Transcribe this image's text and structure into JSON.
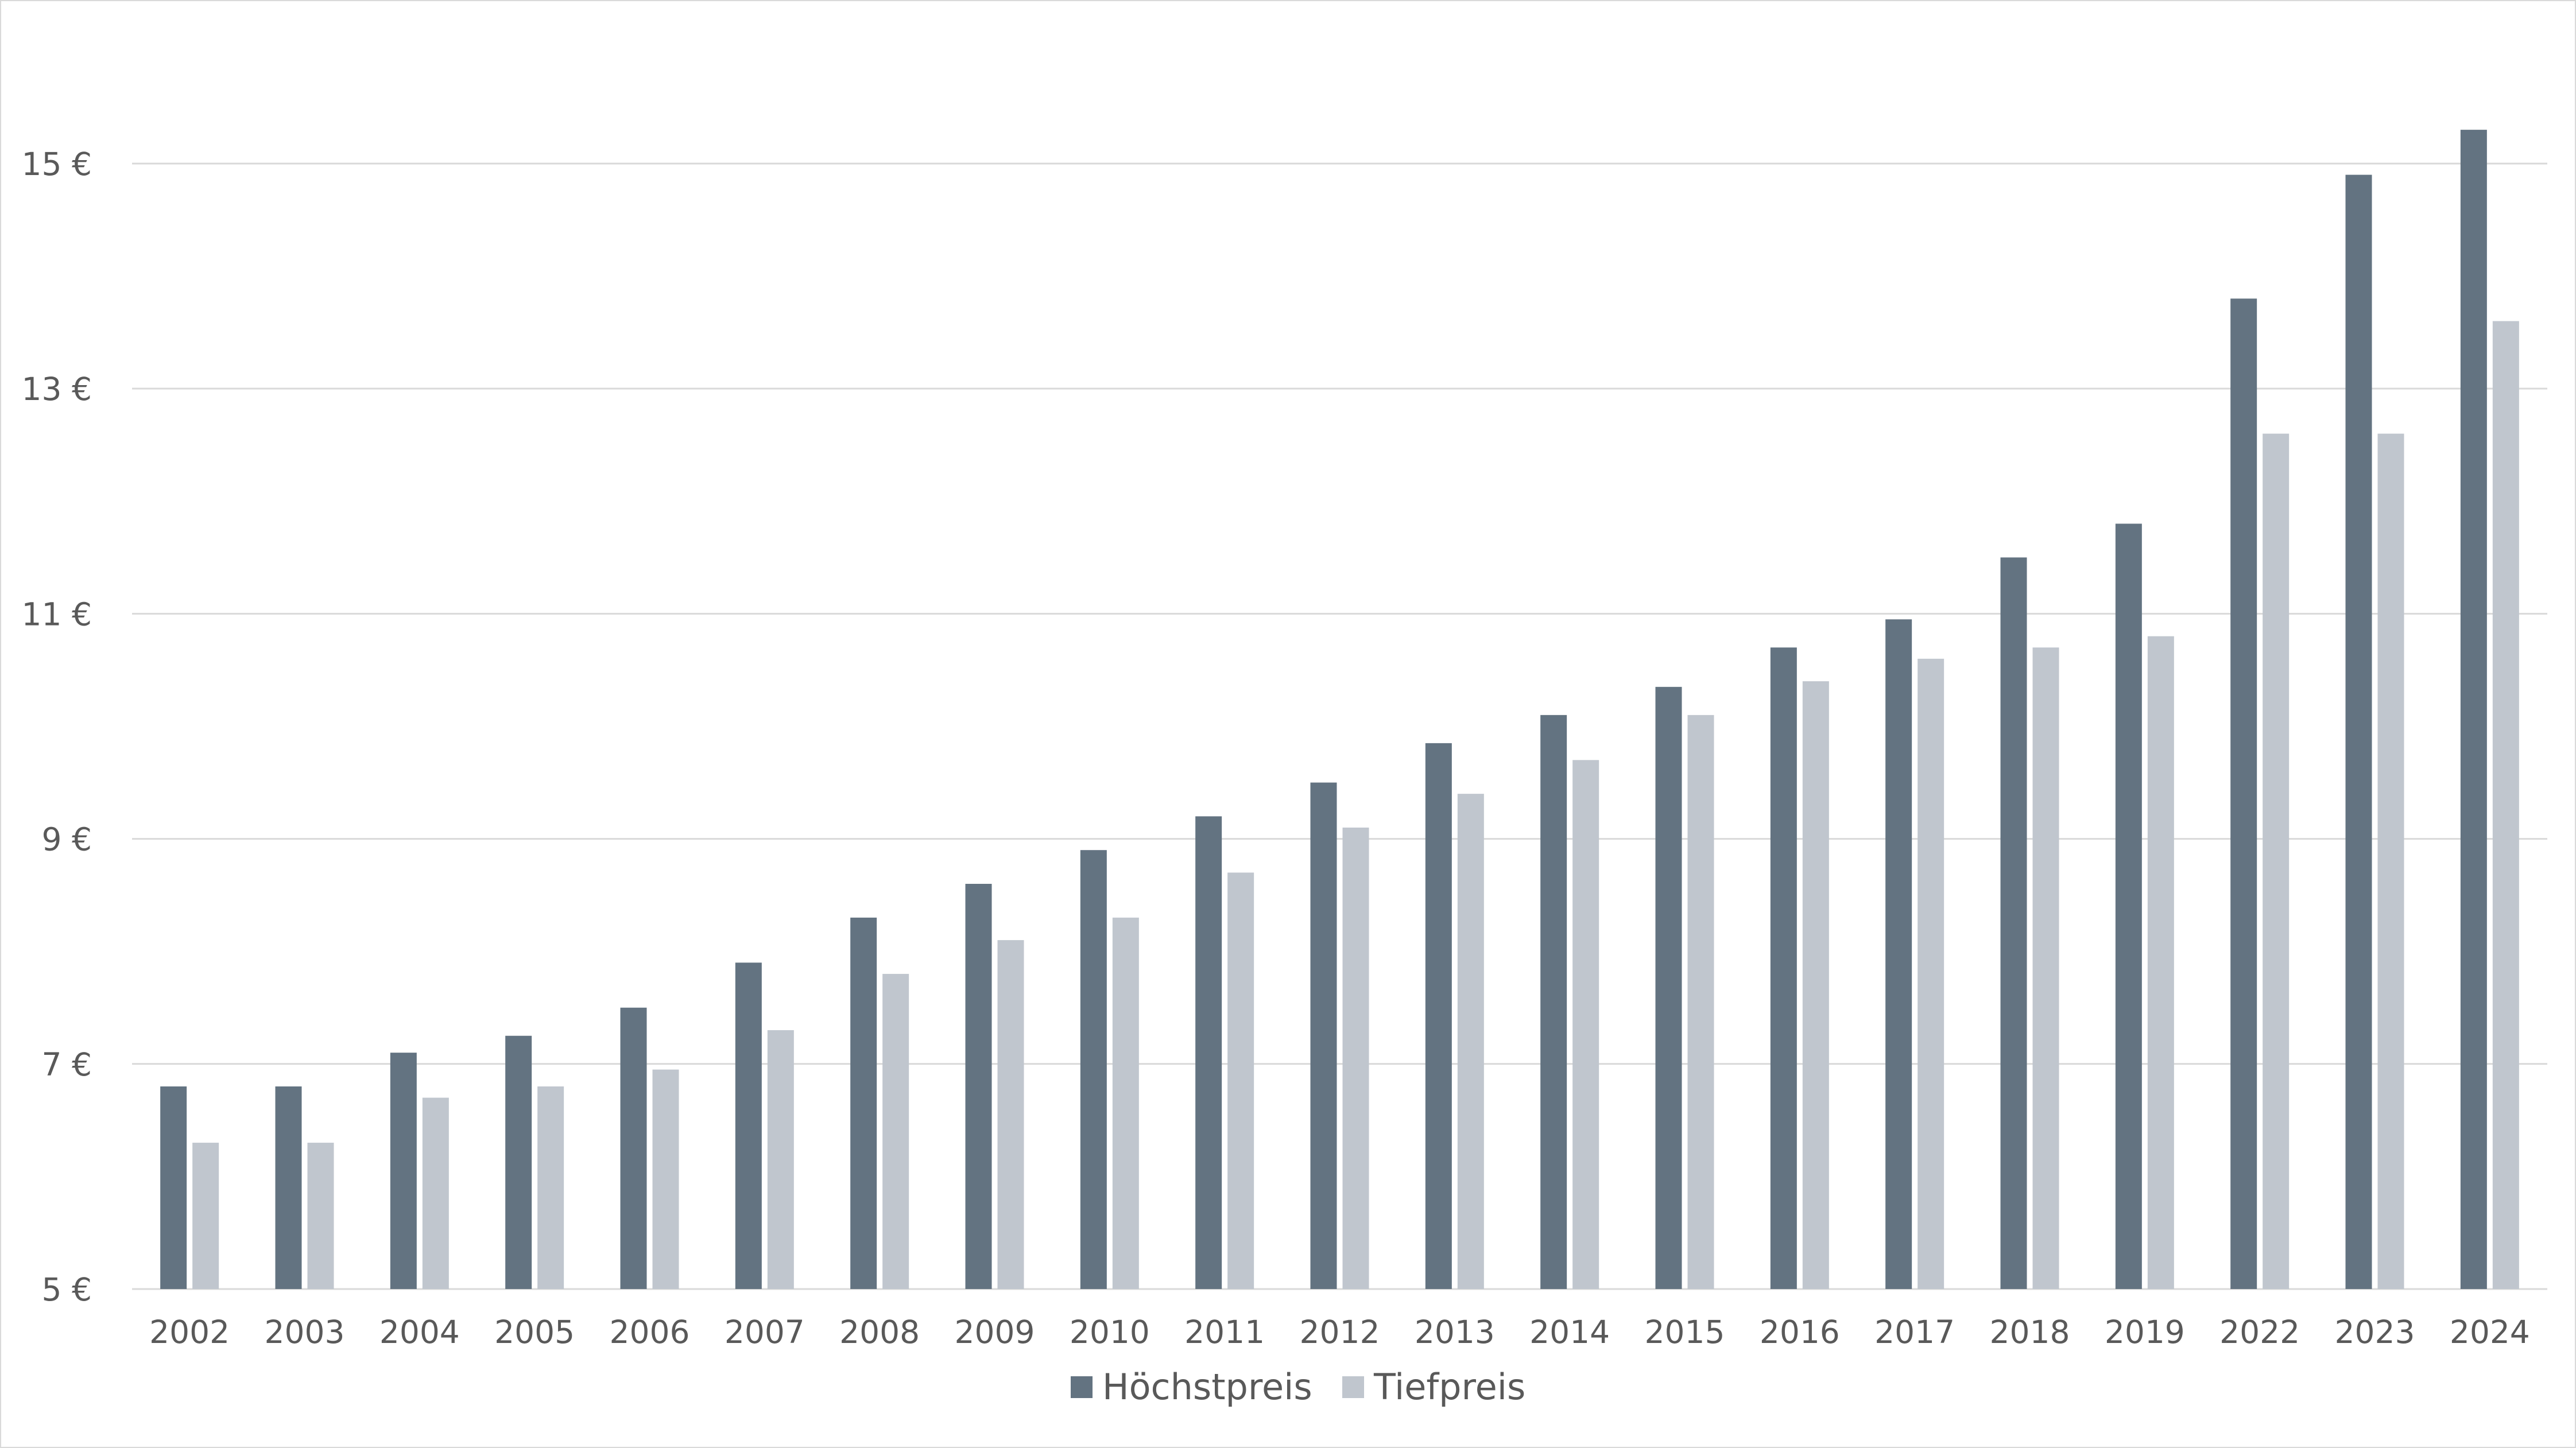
{
  "chart_data": {
    "type": "bar",
    "categories": [
      "2002",
      "2003",
      "2004",
      "2005",
      "2006",
      "2007",
      "2008",
      "2009",
      "2010",
      "2011",
      "2012",
      "2013",
      "2014",
      "2015",
      "2016",
      "2017",
      "2018",
      "2019",
      "2022",
      "2023",
      "2024"
    ],
    "series": [
      {
        "name": "Höchstpreis",
        "color": "#637381",
        "values": [
          6.8,
          6.8,
          7.1,
          7.25,
          7.5,
          7.9,
          8.3,
          8.6,
          8.9,
          9.2,
          9.5,
          9.85,
          10.1,
          10.35,
          10.7,
          10.95,
          11.5,
          11.8,
          13.8,
          14.9,
          15.3
        ]
      },
      {
        "name": "Tiefpreis",
        "color": "#c0c6ce",
        "values": [
          6.3,
          6.3,
          6.7,
          6.8,
          6.95,
          7.3,
          7.8,
          8.1,
          8.3,
          8.7,
          9.1,
          9.4,
          9.7,
          10.1,
          10.4,
          10.6,
          10.7,
          10.8,
          12.6,
          12.6,
          13.6
        ]
      }
    ],
    "yticks": [
      "5 €",
      "7 €",
      "9 €",
      "11 €",
      "13 €",
      "15 €"
    ],
    "ytick_values": [
      5,
      7,
      9,
      11,
      13,
      15
    ],
    "ylim": [
      5,
      16.3
    ],
    "grid": true,
    "legend_position": "bottom-center"
  }
}
